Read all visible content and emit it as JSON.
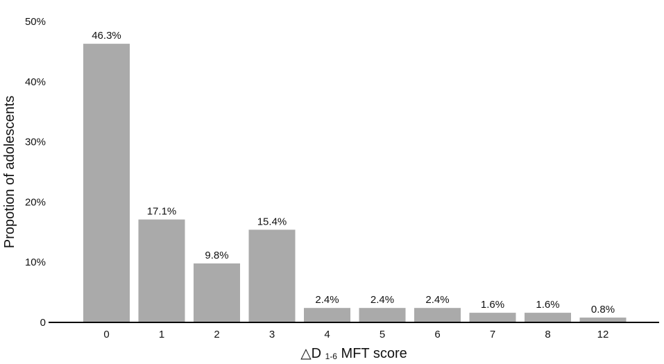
{
  "chart_data": {
    "type": "bar",
    "categories": [
      "0",
      "1",
      "2",
      "3",
      "4",
      "5",
      "6",
      "7",
      "8",
      "12"
    ],
    "values": [
      46.3,
      17.1,
      9.8,
      15.4,
      2.4,
      2.4,
      2.4,
      1.6,
      1.6,
      0.8
    ],
    "data_labels": [
      "46.3%",
      "17.1%",
      "9.8%",
      "15.4%",
      "2.4%",
      "2.4%",
      "2.4%",
      "1.6%",
      "1.6%",
      "0.8%"
    ],
    "y_ticks": [
      {
        "value": 0,
        "label": "0"
      },
      {
        "value": 10,
        "label": "10%"
      },
      {
        "value": 20,
        "label": "20%"
      },
      {
        "value": 30,
        "label": "30%"
      },
      {
        "value": 40,
        "label": "40%"
      },
      {
        "value": 50,
        "label": "50%"
      }
    ],
    "ylim": [
      0,
      50
    ],
    "ylabel": "Propotion of adolescents",
    "xlabel": {
      "prefix": "△D",
      "subscript": "1-6",
      "suffix": "MFT score"
    },
    "bar_color": "#aaaaaa",
    "grid": false,
    "legend": "none"
  }
}
